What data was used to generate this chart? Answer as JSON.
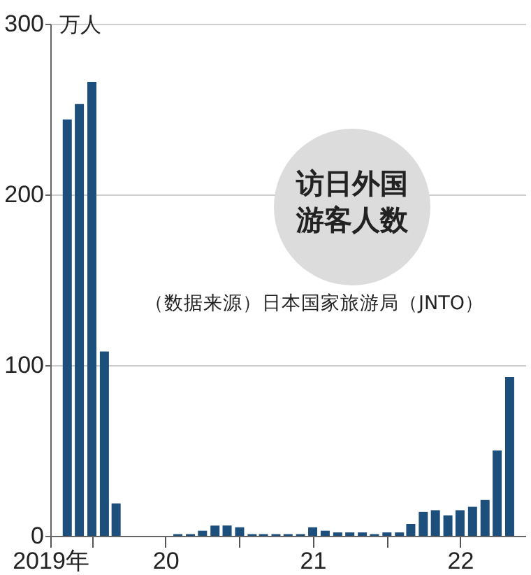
{
  "chart_data": {
    "type": "bar",
    "title": "访日外国游客人数",
    "ylabel": "万人",
    "annotations": [
      "（数据来源）日本国家旅游局（JNTO）"
    ],
    "x": [
      "2019-11",
      "2019-12",
      "2020-01",
      "2020-02",
      "2020-03",
      "2020-04",
      "2020-05",
      "2020-06",
      "2020-07",
      "2020-08",
      "2020-09",
      "2020-10",
      "2020-11",
      "2020-12",
      "2021-01",
      "2021-02",
      "2021-03",
      "2021-04",
      "2021-05",
      "2021-06",
      "2021-07",
      "2021-08",
      "2021-09",
      "2021-10",
      "2021-11",
      "2021-12",
      "2022-01",
      "2022-02",
      "2022-03",
      "2022-04",
      "2022-05",
      "2022-06",
      "2022-07",
      "2022-08",
      "2022-09",
      "2022-10",
      "2022-11"
    ],
    "values": [
      244,
      253,
      266,
      108,
      19,
      0,
      0,
      0,
      0,
      1,
      1,
      3,
      6,
      6,
      5,
      1,
      1,
      1,
      1,
      1,
      5,
      3,
      2,
      2,
      2,
      1,
      2,
      2,
      7,
      14,
      15,
      12,
      15,
      17,
      21,
      50,
      93
    ],
    "color": "#1d4f7c",
    "xlim": [
      "2019-09-20",
      "2022-12-10"
    ],
    "xticks": [
      {
        "value": "2019-09-20",
        "label": "2019年"
      },
      {
        "value": "2020-01",
        "label": null
      },
      {
        "value": "2020-07",
        "label": "20"
      },
      {
        "value": "2021-01",
        "label": null
      },
      {
        "value": "2021-07",
        "label": "21"
      },
      {
        "value": "2022-01",
        "label": null
      },
      {
        "value": "2022-07",
        "label": "22"
      }
    ],
    "ylim": [
      0,
      300
    ],
    "yticks": [
      0,
      100,
      200,
      300
    ],
    "grid": "y"
  }
}
